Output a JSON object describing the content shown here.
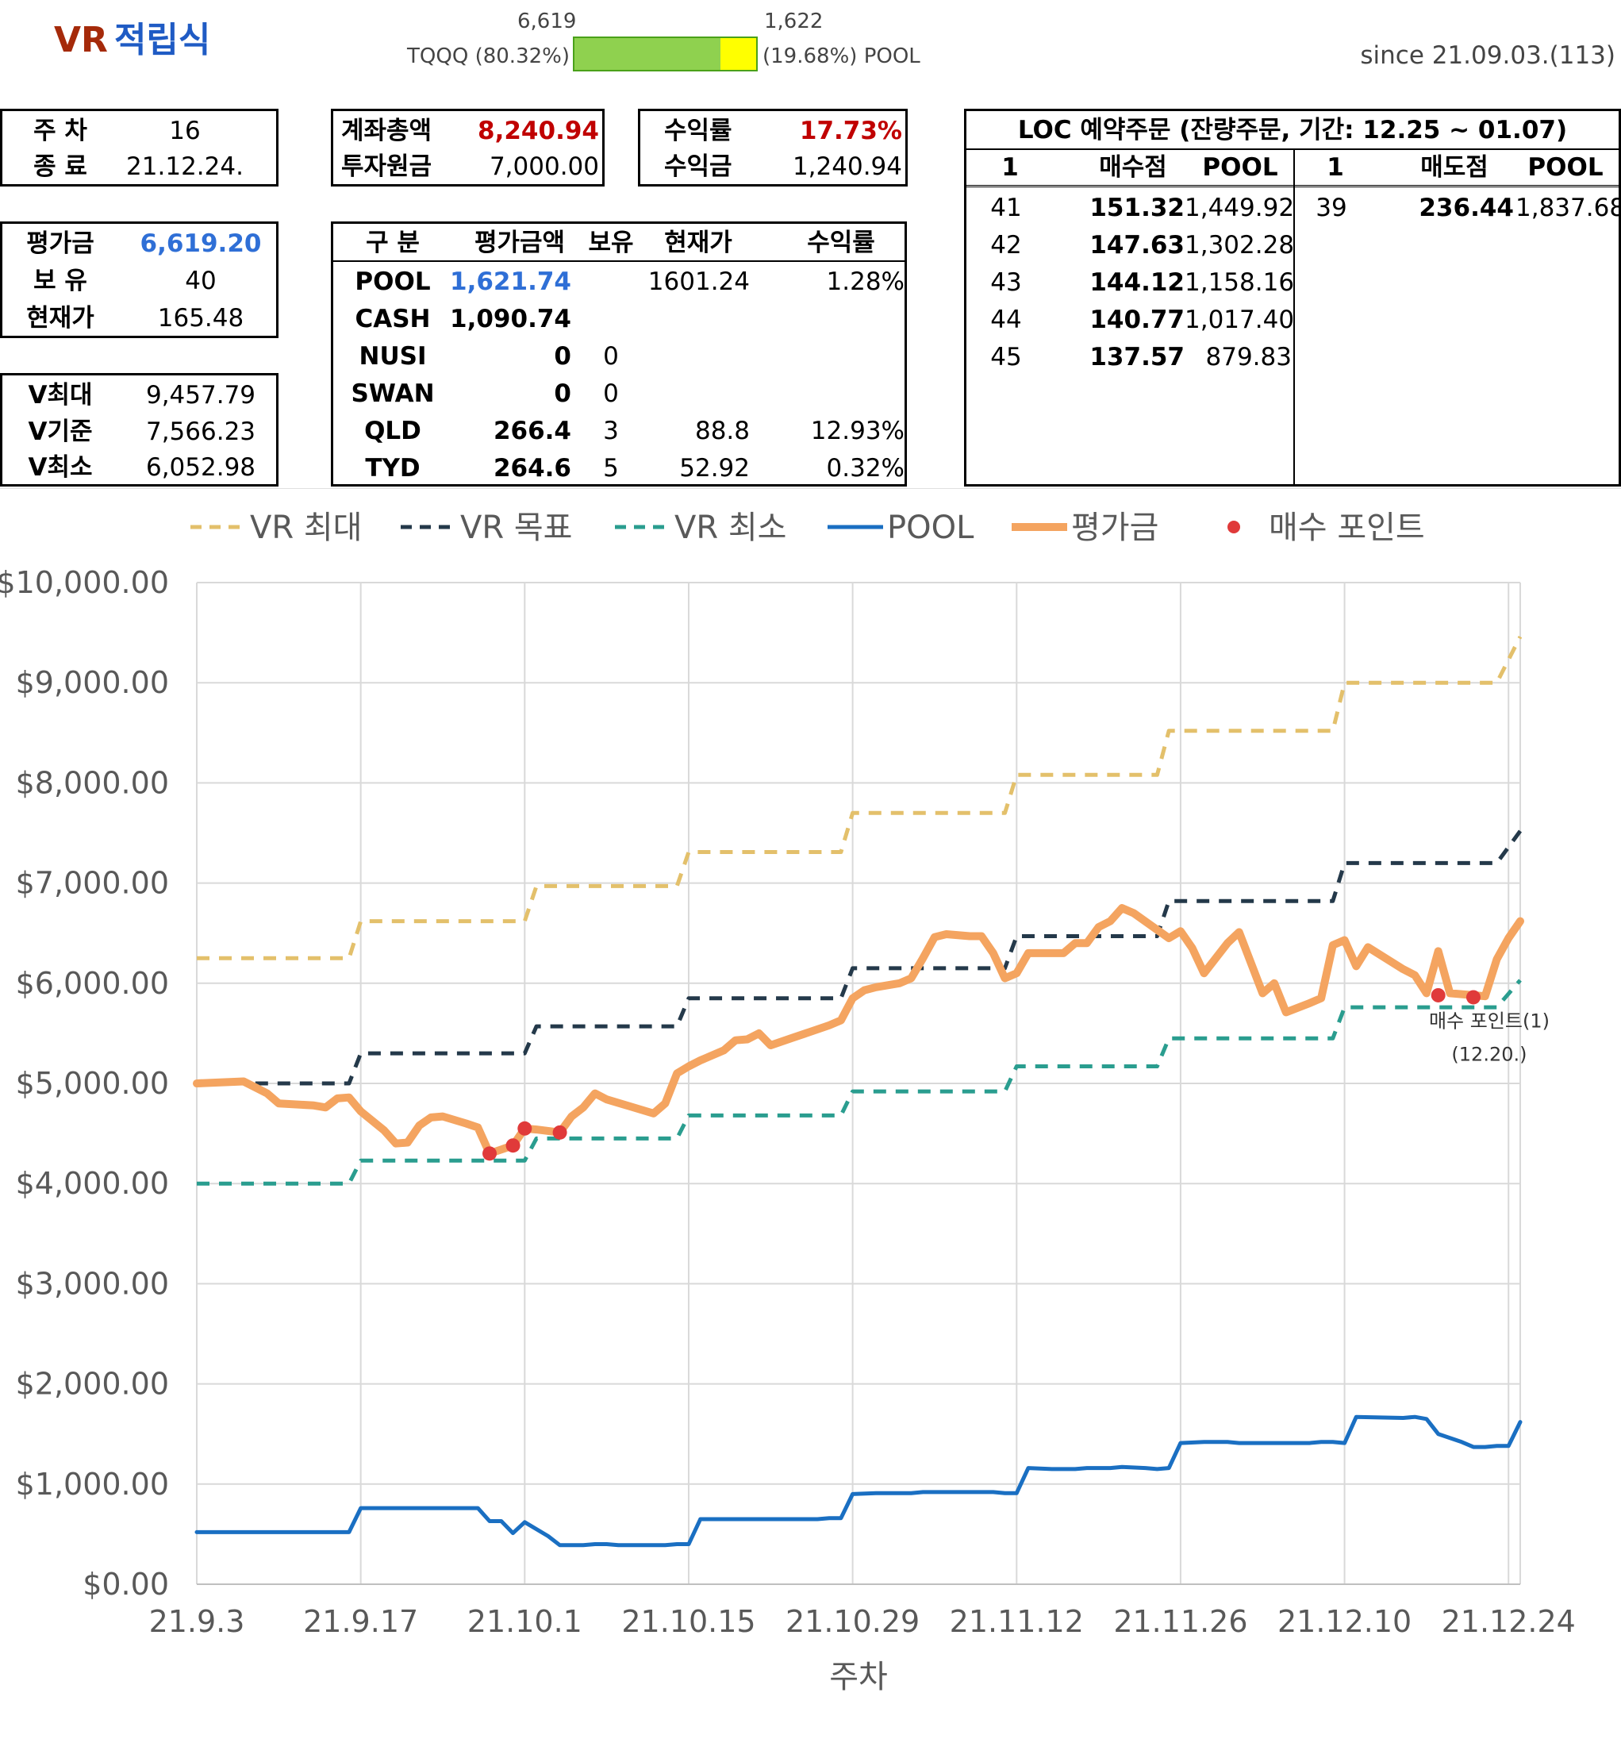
{
  "header": {
    "title_en": "VR",
    "title_kr": "적립식",
    "left_value": "6,619",
    "right_value": "1,622",
    "left_label": "TQQQ (80.32%)",
    "right_label": "(19.68%) POOL",
    "ratio": 0.8032,
    "since": "since 21.09.03.(113)"
  },
  "week_box": {
    "l1": "주 차",
    "v1": "16",
    "l2": "종 료",
    "v2": "21.12.24."
  },
  "account_box": {
    "l1": "계좌총액",
    "v1": "8,240.94",
    "l2": "투자원금",
    "v2": "7,000.00"
  },
  "return_box": {
    "l1": "수익률",
    "v1": "17.73%",
    "l2": "수익금",
    "v2": "1,240.94"
  },
  "eval_box": {
    "l1": "평가금",
    "v1": "6,619.20",
    "l2": "보 유",
    "v2": "40",
    "l3": "현재가",
    "v3": "165.48"
  },
  "v_box": {
    "l1": "V최대",
    "v1": "9,457.79",
    "l2": "V기준",
    "v2": "7,566.23",
    "l3": "V최소",
    "v3": "6,052.98"
  },
  "holdings": {
    "headers": [
      "구 분",
      "평가금액",
      "보유",
      "현재가",
      "수익률"
    ],
    "rows": [
      [
        "POOL",
        "1,621.74",
        "",
        "1601.24",
        "1.28%"
      ],
      [
        "CASH",
        "1,090.74",
        "",
        "",
        ""
      ],
      [
        "NUSI",
        "0",
        "0",
        "",
        ""
      ],
      [
        "SWAN",
        "0",
        "0",
        "",
        ""
      ],
      [
        "QLD",
        "266.4",
        "3",
        "88.8",
        "12.93%"
      ],
      [
        "TYD",
        "264.6",
        "5",
        "52.92",
        "0.32%"
      ]
    ]
  },
  "loc": {
    "title": "LOC 예약주문 (잔량주문, 기간: 12.25 ~ 01.07)",
    "buy_headers": [
      "1",
      "매수점",
      "POOL"
    ],
    "sell_headers": [
      "1",
      "매도점",
      "POOL"
    ],
    "buy_rows": [
      [
        "41",
        "151.32",
        "1,449.92"
      ],
      [
        "42",
        "147.63",
        "1,302.28"
      ],
      [
        "43",
        "144.12",
        "1,158.16"
      ],
      [
        "44",
        "140.77",
        "1,017.40"
      ],
      [
        "45",
        "137.57",
        "879.83"
      ]
    ],
    "sell_rows": [
      [
        "39",
        "236.44",
        "1,837.68"
      ]
    ]
  },
  "colors": {
    "vr_max": "#e3c06b",
    "vr_target": "#24394a",
    "vr_min": "#2a9d8f",
    "pool": "#1a6fc2",
    "eval": "#f4a460",
    "buy_point": "#e03a3a"
  },
  "chart_data": {
    "type": "line",
    "xlabel": "주차",
    "ylabel": "",
    "ylim": [
      0,
      10000
    ],
    "yticks": [
      "$10,000.00",
      "$9,000.00",
      "$8,000.00",
      "$7,000.00",
      "$6,000.00",
      "$5,000.00",
      "$4,000.00",
      "$3,000.00",
      "$2,000.00",
      "$1,000.00",
      "$0.00"
    ],
    "xlim": [
      0,
      113
    ],
    "xticks": [
      "21.9.3",
      "21.9.17",
      "21.10.1",
      "21.10.15",
      "21.10.29",
      "21.11.12",
      "21.11.26",
      "21.12.10",
      "21.12.24"
    ],
    "legend": [
      "VR 최대",
      "VR 목표",
      "VR 최소",
      "POOL",
      "평가금",
      "매수 포인트"
    ],
    "series": [
      {
        "name": "VR 최대",
        "style": "dashed",
        "points": [
          [
            0,
            6250
          ],
          [
            13,
            6250
          ],
          [
            14,
            6620
          ],
          [
            28,
            6620
          ],
          [
            29,
            6970
          ],
          [
            41,
            6970
          ],
          [
            42,
            7310
          ],
          [
            55,
            7310
          ],
          [
            56,
            7700
          ],
          [
            69,
            7700
          ],
          [
            70,
            8080
          ],
          [
            82,
            8080
          ],
          [
            83,
            8520
          ],
          [
            97,
            8520
          ],
          [
            98,
            9000
          ],
          [
            111,
            9000
          ],
          [
            113,
            9460
          ]
        ]
      },
      {
        "name": "VR 목표",
        "style": "dashed",
        "points": [
          [
            5,
            5000
          ],
          [
            13,
            5000
          ],
          [
            14,
            5300
          ],
          [
            28,
            5300
          ],
          [
            29,
            5570
          ],
          [
            41,
            5570
          ],
          [
            42,
            5850
          ],
          [
            55,
            5850
          ],
          [
            56,
            6150
          ],
          [
            69,
            6150
          ],
          [
            70,
            6470
          ],
          [
            82,
            6470
          ],
          [
            83,
            6820
          ],
          [
            97,
            6820
          ],
          [
            98,
            7200
          ],
          [
            111,
            7200
          ],
          [
            113,
            7520
          ]
        ]
      },
      {
        "name": "VR 최소",
        "style": "dashed",
        "points": [
          [
            0,
            4000
          ],
          [
            13,
            4000
          ],
          [
            14,
            4230
          ],
          [
            28,
            4230
          ],
          [
            29,
            4450
          ],
          [
            41,
            4450
          ],
          [
            42,
            4680
          ],
          [
            55,
            4680
          ],
          [
            56,
            4920
          ],
          [
            69,
            4920
          ],
          [
            70,
            5170
          ],
          [
            82,
            5170
          ],
          [
            83,
            5450
          ],
          [
            97,
            5450
          ],
          [
            98,
            5760
          ],
          [
            111,
            5760
          ],
          [
            113,
            6030
          ]
        ]
      },
      {
        "name": "POOL",
        "style": "solid",
        "points": [
          [
            0,
            520
          ],
          [
            13,
            520
          ],
          [
            14,
            760
          ],
          [
            24,
            760
          ],
          [
            25,
            630
          ],
          [
            26,
            630
          ],
          [
            27,
            510
          ],
          [
            28,
            620
          ],
          [
            30,
            480
          ],
          [
            31,
            390
          ],
          [
            33,
            390
          ],
          [
            34,
            400
          ],
          [
            35,
            400
          ],
          [
            36,
            390
          ],
          [
            40,
            390
          ],
          [
            41,
            400
          ],
          [
            42,
            400
          ],
          [
            43,
            650
          ],
          [
            53,
            650
          ],
          [
            54,
            660
          ],
          [
            55,
            660
          ],
          [
            56,
            900
          ],
          [
            58,
            910
          ],
          [
            61,
            910
          ],
          [
            62,
            920
          ],
          [
            68,
            920
          ],
          [
            69,
            910
          ],
          [
            70,
            910
          ],
          [
            71,
            1160
          ],
          [
            73,
            1150
          ],
          [
            75,
            1150
          ],
          [
            76,
            1160
          ],
          [
            78,
            1160
          ],
          [
            79,
            1170
          ],
          [
            81,
            1160
          ],
          [
            82,
            1150
          ],
          [
            83,
            1160
          ],
          [
            84,
            1410
          ],
          [
            86,
            1420
          ],
          [
            88,
            1420
          ],
          [
            89,
            1410
          ],
          [
            95,
            1410
          ],
          [
            96,
            1420
          ],
          [
            97,
            1420
          ],
          [
            98,
            1410
          ],
          [
            99,
            1670
          ],
          [
            103,
            1660
          ],
          [
            104,
            1670
          ],
          [
            105,
            1650
          ],
          [
            106,
            1500
          ],
          [
            108,
            1420
          ],
          [
            109,
            1370
          ],
          [
            110,
            1370
          ],
          [
            111,
            1380
          ],
          [
            112,
            1380
          ],
          [
            113,
            1620
          ]
        ]
      },
      {
        "name": "평가금",
        "style": "solid",
        "points": [
          [
            0,
            5000
          ],
          [
            2,
            5010
          ],
          [
            4,
            5020
          ],
          [
            5,
            4960
          ],
          [
            6,
            4900
          ],
          [
            7,
            4800
          ],
          [
            10,
            4780
          ],
          [
            11,
            4760
          ],
          [
            12,
            4850
          ],
          [
            13,
            4860
          ],
          [
            14,
            4720
          ],
          [
            16,
            4530
          ],
          [
            17,
            4400
          ],
          [
            18,
            4410
          ],
          [
            19,
            4580
          ],
          [
            20,
            4660
          ],
          [
            21,
            4670
          ],
          [
            23,
            4600
          ],
          [
            24,
            4560
          ],
          [
            25,
            4300
          ],
          [
            26,
            4340
          ],
          [
            27,
            4380
          ],
          [
            28,
            4550
          ],
          [
            29,
            4540
          ],
          [
            31,
            4510
          ],
          [
            32,
            4670
          ],
          [
            33,
            4760
          ],
          [
            34,
            4900
          ],
          [
            35,
            4840
          ],
          [
            37,
            4770
          ],
          [
            39,
            4700
          ],
          [
            40,
            4800
          ],
          [
            41,
            5100
          ],
          [
            42,
            5170
          ],
          [
            43,
            5230
          ],
          [
            45,
            5330
          ],
          [
            46,
            5430
          ],
          [
            47,
            5440
          ],
          [
            48,
            5500
          ],
          [
            49,
            5380
          ],
          [
            51,
            5460
          ],
          [
            52,
            5500
          ],
          [
            54,
            5580
          ],
          [
            55,
            5630
          ],
          [
            56,
            5850
          ],
          [
            57,
            5930
          ],
          [
            58,
            5960
          ],
          [
            60,
            6000
          ],
          [
            61,
            6050
          ],
          [
            62,
            6250
          ],
          [
            63,
            6460
          ],
          [
            64,
            6490
          ],
          [
            66,
            6470
          ],
          [
            67,
            6470
          ],
          [
            68,
            6300
          ],
          [
            69,
            6050
          ],
          [
            70,
            6100
          ],
          [
            71,
            6300
          ],
          [
            74,
            6300
          ],
          [
            75,
            6400
          ],
          [
            76,
            6400
          ],
          [
            77,
            6560
          ],
          [
            78,
            6620
          ],
          [
            79,
            6750
          ],
          [
            80,
            6700
          ],
          [
            83,
            6450
          ],
          [
            84,
            6520
          ],
          [
            85,
            6350
          ],
          [
            86,
            6100
          ],
          [
            87,
            6250
          ],
          [
            88,
            6400
          ],
          [
            89,
            6510
          ],
          [
            91,
            5900
          ],
          [
            92,
            6000
          ],
          [
            93,
            5710
          ],
          [
            95,
            5800
          ],
          [
            96,
            5850
          ],
          [
            97,
            6380
          ],
          [
            98,
            6430
          ],
          [
            99,
            6170
          ],
          [
            100,
            6360
          ],
          [
            103,
            6140
          ],
          [
            104,
            6080
          ],
          [
            105,
            5900
          ],
          [
            106,
            6320
          ],
          [
            107,
            5900
          ],
          [
            109,
            5880
          ],
          [
            110,
            5870
          ],
          [
            111,
            6240
          ],
          [
            112,
            6450
          ],
          [
            113,
            6620
          ]
        ]
      }
    ],
    "buy_points": [
      [
        25,
        4300
      ],
      [
        27,
        4380
      ],
      [
        28,
        4550
      ],
      [
        31,
        4510
      ],
      [
        106,
        5880
      ],
      [
        109,
        5860
      ]
    ],
    "annotation": {
      "text1": "매수 포인트(1)",
      "text2": "(12.20.)",
      "x": 109,
      "y": 5860
    }
  }
}
